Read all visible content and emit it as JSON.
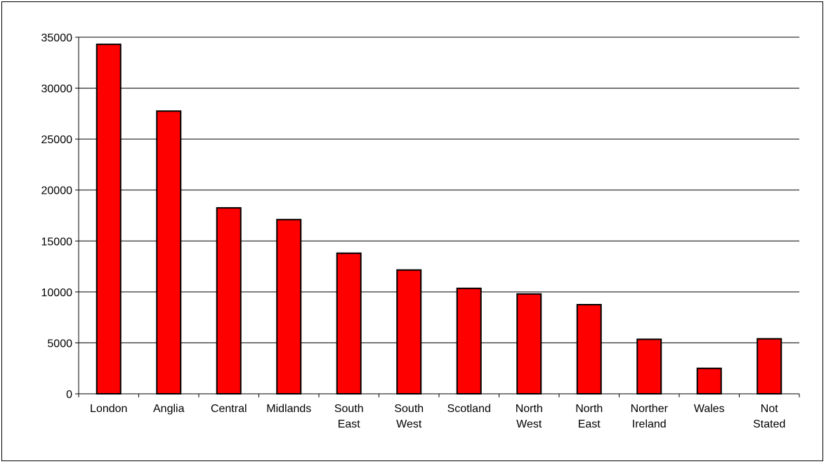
{
  "chart_data": {
    "type": "bar",
    "categories": [
      [
        "London"
      ],
      [
        "Anglia"
      ],
      [
        "Central"
      ],
      [
        "Midlands"
      ],
      [
        "South",
        "East"
      ],
      [
        "South",
        "West"
      ],
      [
        "Scotland"
      ],
      [
        "North",
        "West"
      ],
      [
        "North",
        "East"
      ],
      [
        "Norther",
        "Ireland"
      ],
      [
        "Wales"
      ],
      [
        "Not",
        "Stated"
      ]
    ],
    "values": [
      34300,
      27750,
      18250,
      17100,
      13800,
      12150,
      10350,
      9800,
      8750,
      5350,
      2500,
      5400
    ],
    "y_ticks": [
      0,
      5000,
      10000,
      15000,
      20000,
      25000,
      30000,
      35000
    ],
    "ylim": [
      0,
      35000
    ],
    "grid": true,
    "legend": "none",
    "title": "",
    "xlabel": "",
    "ylabel": "",
    "colors": {
      "bar_fill": "#ff0000",
      "bar_stroke": "#000000",
      "grid": "#000000",
      "axis": "#000000"
    }
  }
}
